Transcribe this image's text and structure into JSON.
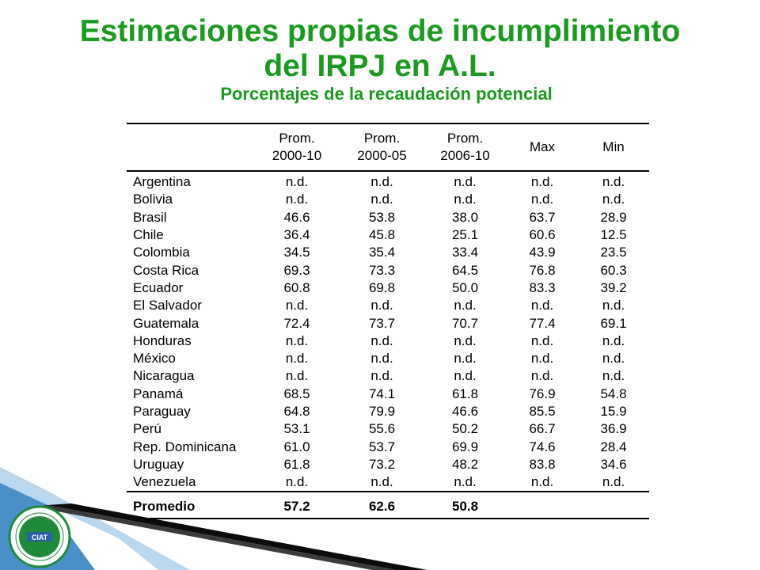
{
  "title_line1": "Estimaciones propias de incumplimiento",
  "title_line2": "del IRPJ en A.L.",
  "subtitle": "Porcentajes de la recaudación potencial",
  "headers": [
    "",
    "Prom.\n2000-10",
    "Prom.\n2000-05",
    "Prom.\n2006-10",
    "Max",
    "Min"
  ],
  "rows": [
    [
      "Argentina",
      "n.d.",
      "n.d.",
      "n.d.",
      "n.d.",
      "n.d."
    ],
    [
      "Bolivia",
      "n.d.",
      "n.d.",
      "n.d.",
      "n.d.",
      "n.d."
    ],
    [
      "Brasil",
      "46.6",
      "53.8",
      "38.0",
      "63.7",
      "28.9"
    ],
    [
      "Chile",
      "36.4",
      "45.8",
      "25.1",
      "60.6",
      "12.5"
    ],
    [
      "Colombia",
      "34.5",
      "35.4",
      "33.4",
      "43.9",
      "23.5"
    ],
    [
      "Costa Rica",
      "69.3",
      "73.3",
      "64.5",
      "76.8",
      "60.3"
    ],
    [
      "Ecuador",
      "60.8",
      "69.8",
      "50.0",
      "83.3",
      "39.2"
    ],
    [
      "El Salvador",
      "n.d.",
      "n.d.",
      "n.d.",
      "n.d.",
      "n.d."
    ],
    [
      "Guatemala",
      "72.4",
      "73.7",
      "70.7",
      "77.4",
      "69.1"
    ],
    [
      "Honduras",
      "n.d.",
      "n.d.",
      "n.d.",
      "n.d.",
      "n.d."
    ],
    [
      "México",
      "n.d.",
      "n.d.",
      "n.d.",
      "n.d.",
      "n.d."
    ],
    [
      "Nicaragua",
      "n.d.",
      "n.d.",
      "n.d.",
      "n.d.",
      "n.d."
    ],
    [
      "Panamá",
      "68.5",
      "74.1",
      "61.8",
      "76.9",
      "54.8"
    ],
    [
      "Paraguay",
      "64.8",
      "79.9",
      "46.6",
      "85.5",
      "15.9"
    ],
    [
      "Perú",
      "53.1",
      "55.6",
      "50.2",
      "66.7",
      "36.9"
    ],
    [
      "Rep. Dominicana",
      "61.0",
      "53.7",
      "69.9",
      "74.6",
      "28.4"
    ],
    [
      "Uruguay",
      "61.8",
      "73.2",
      "48.2",
      "83.8",
      "34.6"
    ],
    [
      "Venezuela",
      "n.d.",
      "n.d.",
      "n.d.",
      "n.d.",
      "n.d."
    ]
  ],
  "average": [
    "Promedio",
    "57.2",
    "62.6",
    "50.8",
    "",
    ""
  ],
  "logo": {
    "text": "CIAT",
    "ring_text": "CENTRO INTERAMERICANO DE ADMINISTRACIONES TRIBUTARIAS",
    "year": "FUNDADO 1967"
  },
  "colors": {
    "title": "#1a9a1e",
    "decor_blue": "#4a90c8",
    "decor_dark": "#0b0b0b",
    "logo_green": "#1f8a3a"
  }
}
